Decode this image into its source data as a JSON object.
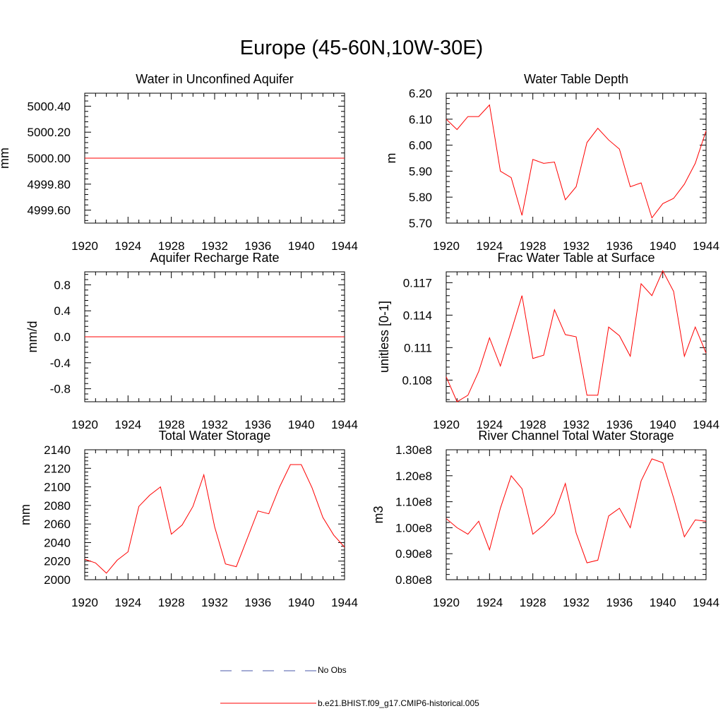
{
  "figure": {
    "title": "Europe (45-60N,10W-30E)"
  },
  "legend": {
    "entries": [
      {
        "label": "No Obs",
        "color": "#4a5aa8",
        "style": "dashed"
      },
      {
        "label": "b.e21.BHIST.f09_g17.CMIP6-historical.005",
        "color": "#ff0000",
        "style": "solid"
      }
    ]
  },
  "chart_data": [
    {
      "type": "line",
      "title": "Water in Unconfined Aquifer",
      "xlabel": "",
      "ylabel": "mm",
      "xlim": [
        1920,
        1944
      ],
      "ylim": [
        4999.5,
        5000.5
      ],
      "xticks": [
        1920,
        1924,
        1928,
        1932,
        1936,
        1940,
        1944
      ],
      "xtick_labels": [
        "1920",
        "1924",
        "1928",
        "1932",
        "1936",
        "1940",
        "1944"
      ],
      "yticks": [
        4999.6,
        4999.8,
        5000.0,
        5000.2,
        5000.4
      ],
      "ytick_labels": [
        "4999.60",
        "4999.80",
        "5000.00",
        "5000.20",
        "5000.40"
      ],
      "series": [
        {
          "color": "#ff0000",
          "x": [
            1920,
            1944
          ],
          "y": [
            5000.0,
            5000.0
          ]
        }
      ]
    },
    {
      "type": "line",
      "title": "Water Table Depth",
      "xlabel": "",
      "ylabel": "m",
      "xlim": [
        1920,
        1944
      ],
      "ylim": [
        5.7,
        6.2
      ],
      "xticks": [
        1920,
        1924,
        1928,
        1932,
        1936,
        1940,
        1944
      ],
      "xtick_labels": [
        "1920",
        "1924",
        "1928",
        "1932",
        "1936",
        "1940",
        "1944"
      ],
      "yticks": [
        5.7,
        5.8,
        5.9,
        6.0,
        6.1,
        6.2
      ],
      "ytick_labels": [
        "5.70",
        "5.80",
        "5.90",
        "6.00",
        "6.10",
        "6.20"
      ],
      "series": [
        {
          "color": "#ff0000",
          "x": [
            1920,
            1921,
            1922,
            1923,
            1924,
            1925,
            1926,
            1927,
            1928,
            1929,
            1930,
            1931,
            1932,
            1933,
            1934,
            1935,
            1936,
            1937,
            1938,
            1939,
            1940,
            1941,
            1942,
            1943,
            1944
          ],
          "y": [
            6.1,
            6.06,
            6.11,
            6.11,
            6.155,
            5.9,
            5.875,
            5.73,
            5.945,
            5.93,
            5.935,
            5.79,
            5.84,
            6.01,
            6.065,
            6.02,
            5.985,
            5.84,
            5.855,
            5.72,
            5.775,
            5.795,
            5.85,
            5.93,
            6.055
          ]
        }
      ]
    },
    {
      "type": "line",
      "title": "Aquifer Recharge Rate",
      "xlabel": "",
      "ylabel": "mm/d",
      "xlim": [
        1920,
        1944
      ],
      "ylim": [
        -1.0,
        1.0
      ],
      "xticks": [
        1920,
        1924,
        1928,
        1932,
        1936,
        1940,
        1944
      ],
      "xtick_labels": [
        "1920",
        "1924",
        "1928",
        "1932",
        "1936",
        "1940",
        "1944"
      ],
      "yticks": [
        -0.8,
        -0.4,
        0.0,
        0.4,
        0.8
      ],
      "ytick_labels": [
        "-0.8",
        "-0.4",
        "0.0",
        "0.4",
        "0.8"
      ],
      "series": [
        {
          "color": "#ff0000",
          "x": [
            1920,
            1944
          ],
          "y": [
            0.0,
            0.0
          ]
        }
      ]
    },
    {
      "type": "line",
      "title": "Frac Water Table at Surface",
      "xlabel": "",
      "ylabel": "unitless [0-1]",
      "xlim": [
        1920,
        1944
      ],
      "ylim": [
        0.106,
        0.118
      ],
      "xticks": [
        1920,
        1924,
        1928,
        1932,
        1936,
        1940,
        1944
      ],
      "xtick_labels": [
        "1920",
        "1924",
        "1928",
        "1932",
        "1936",
        "1940",
        "1944"
      ],
      "yticks": [
        0.108,
        0.111,
        0.114,
        0.117
      ],
      "ytick_labels": [
        "0.108",
        "0.111",
        "0.114",
        "0.117"
      ],
      "series": [
        {
          "color": "#ff0000",
          "x": [
            1920,
            1921,
            1922,
            1923,
            1924,
            1925,
            1926,
            1927,
            1928,
            1929,
            1930,
            1931,
            1932,
            1933,
            1934,
            1935,
            1936,
            1937,
            1938,
            1939,
            1940,
            1941,
            1942,
            1943,
            1944
          ],
          "y": [
            0.1083,
            0.106,
            0.1066,
            0.1088,
            0.1119,
            0.1093,
            0.1125,
            0.1158,
            0.11,
            0.1103,
            0.1145,
            0.1122,
            0.112,
            0.1066,
            0.1066,
            0.1129,
            0.1121,
            0.1102,
            0.1169,
            0.1158,
            0.1181,
            0.1162,
            0.1102,
            0.1129,
            0.1105
          ]
        }
      ]
    },
    {
      "type": "line",
      "title": "Total Water Storage",
      "xlabel": "",
      "ylabel": "mm",
      "xlim": [
        1920,
        1944
      ],
      "ylim": [
        2000,
        2140
      ],
      "xticks": [
        1920,
        1924,
        1928,
        1932,
        1936,
        1940,
        1944
      ],
      "xtick_labels": [
        "1920",
        "1924",
        "1928",
        "1932",
        "1936",
        "1940",
        "1944"
      ],
      "yticks": [
        2000,
        2020,
        2040,
        2060,
        2080,
        2100,
        2120,
        2140
      ],
      "ytick_labels": [
        "2000",
        "2020",
        "2040",
        "2060",
        "2080",
        "2100",
        "2120",
        "2140"
      ],
      "series": [
        {
          "color": "#ff0000",
          "x": [
            1920,
            1921,
            1922,
            1923,
            1924,
            1925,
            1926,
            1927,
            1928,
            1929,
            1930,
            1931,
            1932,
            1933,
            1934,
            1935,
            1936,
            1937,
            1938,
            1939,
            1940,
            1941,
            1942,
            1943,
            1944
          ],
          "y": [
            2022,
            2018,
            2007,
            2021,
            2030,
            2079,
            2091,
            2100,
            2049,
            2059,
            2079,
            2113,
            2057,
            2017,
            2014,
            2044,
            2074,
            2071,
            2100,
            2124,
            2124,
            2099,
            2067,
            2048,
            2035
          ]
        }
      ]
    },
    {
      "type": "line",
      "title": "River Channel Total Water Storage",
      "xlabel": "",
      "ylabel": "m3",
      "xlim": [
        1920,
        1944
      ],
      "ylim": [
        80000000.0,
        130000000.0
      ],
      "xticks": [
        1920,
        1924,
        1928,
        1932,
        1936,
        1940,
        1944
      ],
      "xtick_labels": [
        "1920",
        "1924",
        "1928",
        "1932",
        "1936",
        "1940",
        "1944"
      ],
      "yticks": [
        80000000.0,
        90000000.0,
        100000000.0,
        110000000.0,
        120000000.0,
        130000000.0
      ],
      "ytick_labels": [
        "0.80e8",
        "0.90e8",
        "1.00e8",
        "1.10e8",
        "1.20e8",
        "1.30e8"
      ],
      "series": [
        {
          "color": "#ff0000",
          "x": [
            1920,
            1921,
            1922,
            1923,
            1924,
            1925,
            1926,
            1927,
            1928,
            1929,
            1930,
            1931,
            1932,
            1933,
            1934,
            1935,
            1936,
            1937,
            1938,
            1939,
            1940,
            1941,
            1942,
            1943,
            1944
          ],
          "y": [
            103500000.0,
            100000000.0,
            97500000.0,
            102500000.0,
            91500000.0,
            107500000.0,
            120000000.0,
            115000000.0,
            97500000.0,
            101000000.0,
            105500000.0,
            117000000.0,
            98000000.0,
            86500000.0,
            87500000.0,
            104500000.0,
            107500000.0,
            100000000.0,
            118000000.0,
            126500000.0,
            125000000.0,
            111500000.0,
            96500000.0,
            103000000.0,
            102500000.0
          ]
        }
      ]
    }
  ]
}
